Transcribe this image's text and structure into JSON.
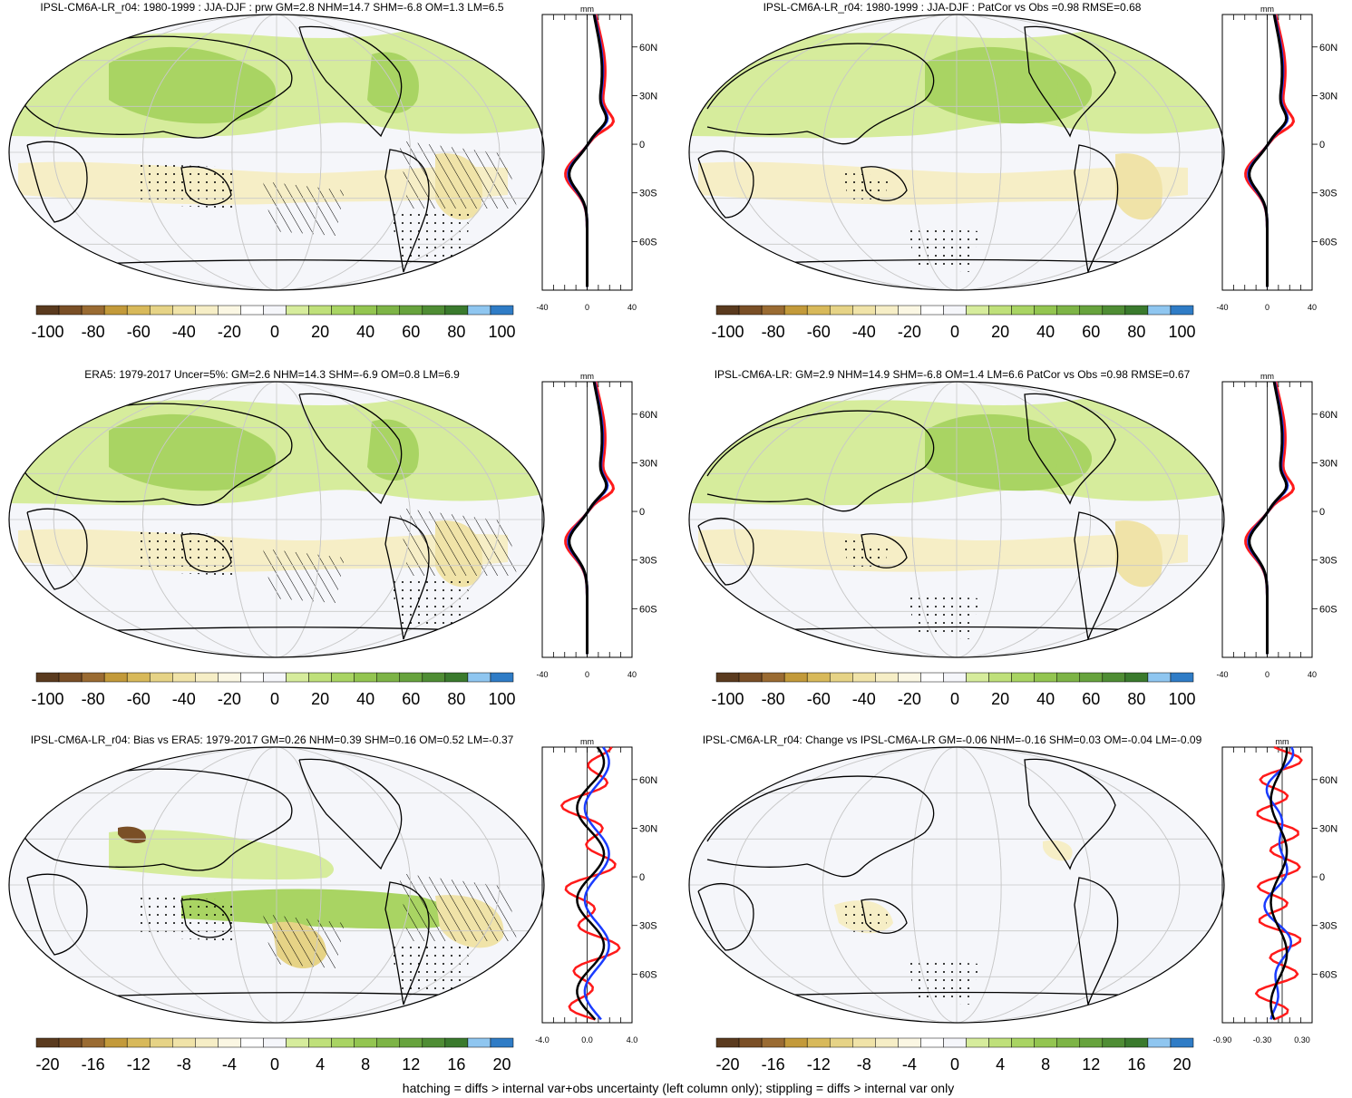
{
  "footer": "hatching = diffs > internal var+obs uncertainty (left column only); stippling = diffs > internal var only",
  "colors": {
    "background": "#f5f6fa",
    "coast": "#000000",
    "graticule": "#c8c8c8",
    "profile_red": "#ff1a1a",
    "profile_blue": "#1a3cff",
    "profile_black": "#000000",
    "colorbar": [
      "#5a3a1e",
      "#7a4f26",
      "#9a6b32",
      "#c39a3a",
      "#d8b95a",
      "#e6d386",
      "#f0e3a8",
      "#f6eec6",
      "#fbf7e3",
      "#ffffff",
      "#f5f6fa",
      "#d6ec9c",
      "#bfe07a",
      "#a9d463",
      "#93c550",
      "#7db446",
      "#67a33d",
      "#4f8d34",
      "#3a7a2d",
      "#8fc6f0",
      "#2f7cc6"
    ]
  },
  "panels": [
    {
      "id": "jja-djf-model",
      "title": "IPSL-CM6A-LR_r04: 1980-1999 : JJA-DJF : prw GM=2.8 NHM=14.7 SHM=-6.8 OM=1.3 LM=6.5",
      "colorbar_labels": [
        "-100",
        "-80",
        "-60",
        "-40",
        "-20",
        "0",
        "20",
        "40",
        "60",
        "80",
        "100"
      ],
      "profile": {
        "unit": "mm",
        "x_ticks": [
          "-40",
          "0",
          "40"
        ],
        "lat_labels": [
          "60N",
          "30N",
          "0",
          "30S",
          "60S"
        ],
        "xmin": -40,
        "xmax": 40
      }
    },
    {
      "id": "jja-djf-patcor",
      "title": "IPSL-CM6A-LR_r04: 1980-1999 : JJA-DJF : PatCor vs Obs =0.98 RMSE=0.68",
      "colorbar_labels": [
        "-100",
        "-80",
        "-60",
        "-40",
        "-20",
        "0",
        "20",
        "40",
        "60",
        "80",
        "100"
      ],
      "profile": {
        "unit": "mm",
        "x_ticks": [
          "-40",
          "0",
          "40"
        ],
        "lat_labels": [
          "60N",
          "30N",
          "0",
          "30S",
          "60S"
        ],
        "xmin": -40,
        "xmax": 40
      }
    },
    {
      "id": "era5",
      "title": "ERA5: 1979-2017 Uncer=5%: GM=2.6 NHM=14.3 SHM=-6.9 OM=0.8 LM=6.9",
      "colorbar_labels": [
        "-100",
        "-80",
        "-60",
        "-40",
        "-20",
        "0",
        "20",
        "40",
        "60",
        "80",
        "100"
      ],
      "profile": {
        "unit": "mm",
        "x_ticks": [
          "-40",
          "0",
          "40"
        ],
        "lat_labels": [
          "60N",
          "30N",
          "0",
          "30S",
          "60S"
        ],
        "xmin": -40,
        "xmax": 40
      }
    },
    {
      "id": "ensemble",
      "title": "IPSL-CM6A-LR: GM=2.9 NHM=14.9 SHM=-6.8 OM=1.4 LM=6.6 PatCor vs Obs =0.98 RMSE=0.67",
      "colorbar_labels": [
        "-100",
        "-80",
        "-60",
        "-40",
        "-20",
        "0",
        "20",
        "40",
        "60",
        "80",
        "100"
      ],
      "profile": {
        "unit": "mm",
        "x_ticks": [
          "-40",
          "0",
          "40"
        ],
        "lat_labels": [
          "60N",
          "30N",
          "0",
          "30S",
          "60S"
        ],
        "xmin": -40,
        "xmax": 40
      }
    },
    {
      "id": "bias",
      "title": "IPSL-CM6A-LR_r04: Bias vs ERA5: 1979-2017 GM=0.26 NHM=0.39 SHM=0.16 OM=0.52 LM=-0.37",
      "colorbar_labels": [
        "-20",
        "-16",
        "-12",
        "-8",
        "-4",
        "0",
        "4",
        "8",
        "12",
        "16",
        "20"
      ],
      "profile": {
        "unit": "mm",
        "x_ticks": [
          "-4.0",
          "0.0",
          "4.0"
        ],
        "lat_labels": [
          "60N",
          "30N",
          "0",
          "30S",
          "60S"
        ],
        "xmin": -4,
        "xmax": 4
      }
    },
    {
      "id": "change",
      "title": "IPSL-CM6A-LR_r04: Change vs IPSL-CM6A-LR GM=-0.06 NHM=-0.16 SHM=0.03 OM=-0.04 LM=-0.09",
      "colorbar_labels": [
        "-20",
        "-16",
        "-12",
        "-8",
        "-4",
        "0",
        "4",
        "8",
        "12",
        "16",
        "20"
      ],
      "profile": {
        "unit": "mm",
        "x_ticks": [
          "-0.90",
          "-0.30",
          "0.30"
        ],
        "lat_labels": [
          "60N",
          "30N",
          "0",
          "30S",
          "60S"
        ],
        "xmin": -0.9,
        "xmax": 0.45
      }
    }
  ]
}
